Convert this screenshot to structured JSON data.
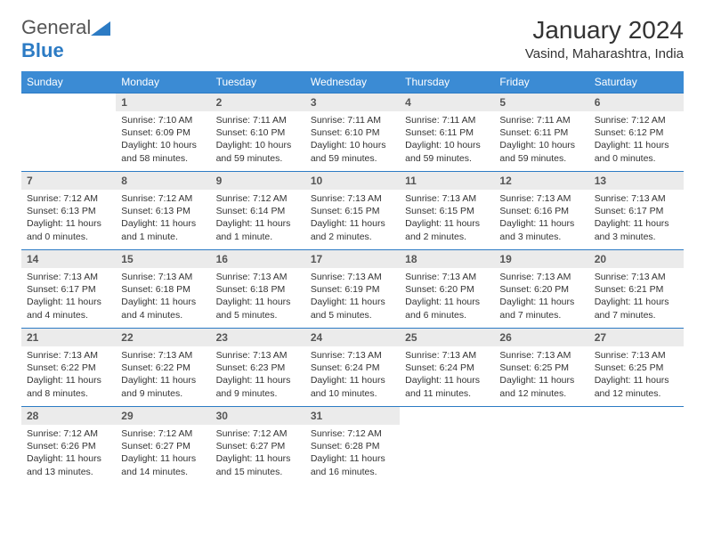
{
  "logo": {
    "text1": "General",
    "text2": "Blue"
  },
  "title": "January 2024",
  "location": "Vasind, Maharashtra, India",
  "colors": {
    "header_bg": "#3b8bd4",
    "header_text": "#ffffff",
    "border": "#2c7bc4",
    "daynum_bg": "#ebebeb",
    "text": "#333333",
    "logo_blue": "#2c7bc4"
  },
  "day_names": [
    "Sunday",
    "Monday",
    "Tuesday",
    "Wednesday",
    "Thursday",
    "Friday",
    "Saturday"
  ],
  "start_offset": 1,
  "days": [
    {
      "n": 1,
      "sunrise": "7:10 AM",
      "sunset": "6:09 PM",
      "daylight": "10 hours and 58 minutes."
    },
    {
      "n": 2,
      "sunrise": "7:11 AM",
      "sunset": "6:10 PM",
      "daylight": "10 hours and 59 minutes."
    },
    {
      "n": 3,
      "sunrise": "7:11 AM",
      "sunset": "6:10 PM",
      "daylight": "10 hours and 59 minutes."
    },
    {
      "n": 4,
      "sunrise": "7:11 AM",
      "sunset": "6:11 PM",
      "daylight": "10 hours and 59 minutes."
    },
    {
      "n": 5,
      "sunrise": "7:11 AM",
      "sunset": "6:11 PM",
      "daylight": "10 hours and 59 minutes."
    },
    {
      "n": 6,
      "sunrise": "7:12 AM",
      "sunset": "6:12 PM",
      "daylight": "11 hours and 0 minutes."
    },
    {
      "n": 7,
      "sunrise": "7:12 AM",
      "sunset": "6:13 PM",
      "daylight": "11 hours and 0 minutes."
    },
    {
      "n": 8,
      "sunrise": "7:12 AM",
      "sunset": "6:13 PM",
      "daylight": "11 hours and 1 minute."
    },
    {
      "n": 9,
      "sunrise": "7:12 AM",
      "sunset": "6:14 PM",
      "daylight": "11 hours and 1 minute."
    },
    {
      "n": 10,
      "sunrise": "7:13 AM",
      "sunset": "6:15 PM",
      "daylight": "11 hours and 2 minutes."
    },
    {
      "n": 11,
      "sunrise": "7:13 AM",
      "sunset": "6:15 PM",
      "daylight": "11 hours and 2 minutes."
    },
    {
      "n": 12,
      "sunrise": "7:13 AM",
      "sunset": "6:16 PM",
      "daylight": "11 hours and 3 minutes."
    },
    {
      "n": 13,
      "sunrise": "7:13 AM",
      "sunset": "6:17 PM",
      "daylight": "11 hours and 3 minutes."
    },
    {
      "n": 14,
      "sunrise": "7:13 AM",
      "sunset": "6:17 PM",
      "daylight": "11 hours and 4 minutes."
    },
    {
      "n": 15,
      "sunrise": "7:13 AM",
      "sunset": "6:18 PM",
      "daylight": "11 hours and 4 minutes."
    },
    {
      "n": 16,
      "sunrise": "7:13 AM",
      "sunset": "6:18 PM",
      "daylight": "11 hours and 5 minutes."
    },
    {
      "n": 17,
      "sunrise": "7:13 AM",
      "sunset": "6:19 PM",
      "daylight": "11 hours and 5 minutes."
    },
    {
      "n": 18,
      "sunrise": "7:13 AM",
      "sunset": "6:20 PM",
      "daylight": "11 hours and 6 minutes."
    },
    {
      "n": 19,
      "sunrise": "7:13 AM",
      "sunset": "6:20 PM",
      "daylight": "11 hours and 7 minutes."
    },
    {
      "n": 20,
      "sunrise": "7:13 AM",
      "sunset": "6:21 PM",
      "daylight": "11 hours and 7 minutes."
    },
    {
      "n": 21,
      "sunrise": "7:13 AM",
      "sunset": "6:22 PM",
      "daylight": "11 hours and 8 minutes."
    },
    {
      "n": 22,
      "sunrise": "7:13 AM",
      "sunset": "6:22 PM",
      "daylight": "11 hours and 9 minutes."
    },
    {
      "n": 23,
      "sunrise": "7:13 AM",
      "sunset": "6:23 PM",
      "daylight": "11 hours and 9 minutes."
    },
    {
      "n": 24,
      "sunrise": "7:13 AM",
      "sunset": "6:24 PM",
      "daylight": "11 hours and 10 minutes."
    },
    {
      "n": 25,
      "sunrise": "7:13 AM",
      "sunset": "6:24 PM",
      "daylight": "11 hours and 11 minutes."
    },
    {
      "n": 26,
      "sunrise": "7:13 AM",
      "sunset": "6:25 PM",
      "daylight": "11 hours and 12 minutes."
    },
    {
      "n": 27,
      "sunrise": "7:13 AM",
      "sunset": "6:25 PM",
      "daylight": "11 hours and 12 minutes."
    },
    {
      "n": 28,
      "sunrise": "7:12 AM",
      "sunset": "6:26 PM",
      "daylight": "11 hours and 13 minutes."
    },
    {
      "n": 29,
      "sunrise": "7:12 AM",
      "sunset": "6:27 PM",
      "daylight": "11 hours and 14 minutes."
    },
    {
      "n": 30,
      "sunrise": "7:12 AM",
      "sunset": "6:27 PM",
      "daylight": "11 hours and 15 minutes."
    },
    {
      "n": 31,
      "sunrise": "7:12 AM",
      "sunset": "6:28 PM",
      "daylight": "11 hours and 16 minutes."
    }
  ],
  "labels": {
    "sunrise": "Sunrise:",
    "sunset": "Sunset:",
    "daylight": "Daylight:"
  }
}
